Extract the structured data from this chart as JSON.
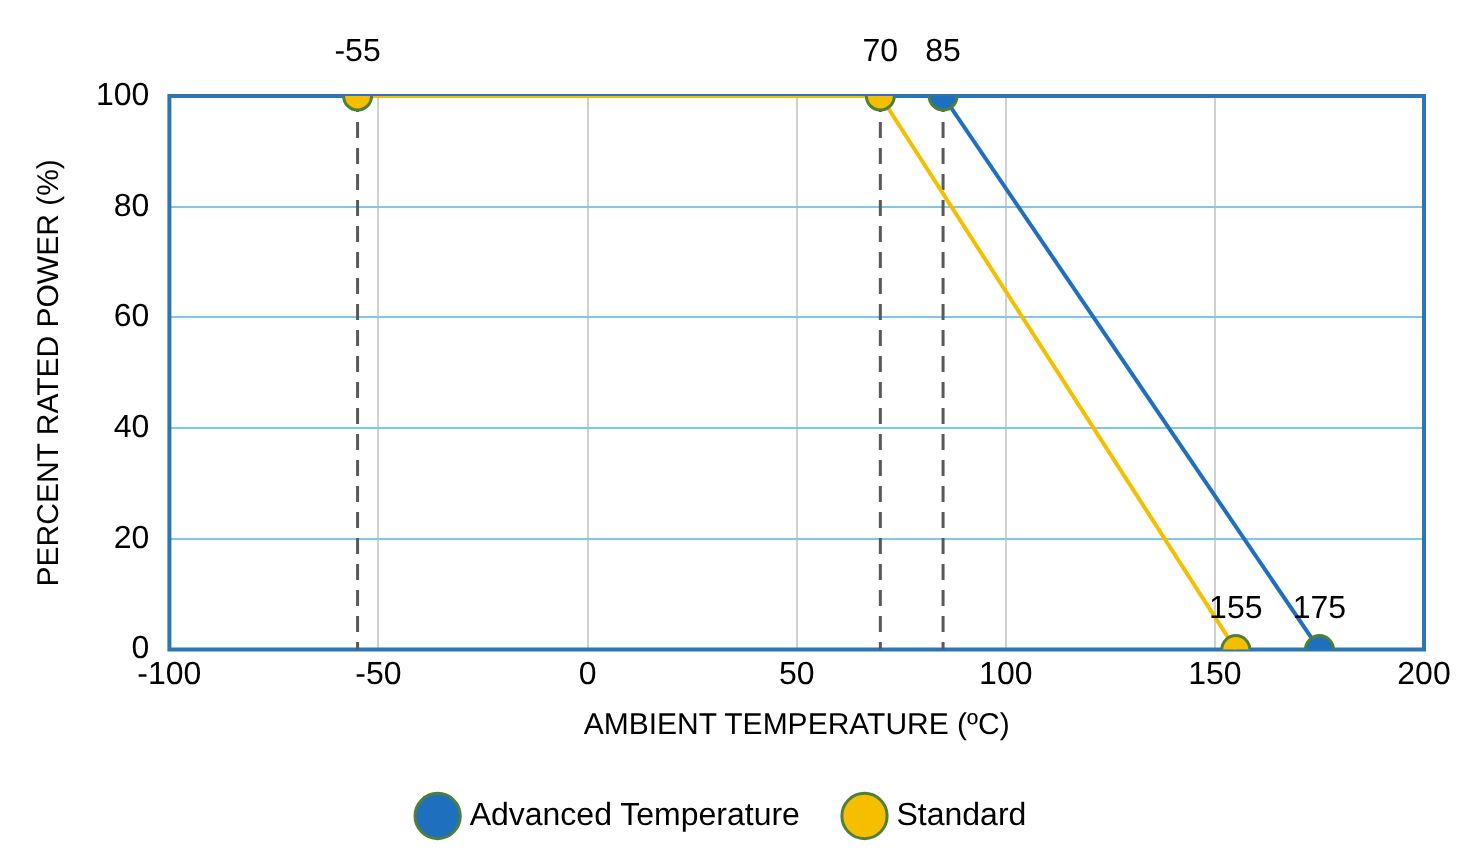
{
  "chart_data": {
    "type": "line",
    "xlabel": "AMBIENT TEMPERATURE (ºC)",
    "ylabel": "PERCENT RATED POWER (%)",
    "xlim": [
      -100,
      200
    ],
    "xticks": [
      -100,
      -50,
      0,
      50,
      100,
      150,
      200
    ],
    "ylim": [
      0,
      100
    ],
    "yticks": [
      0,
      20,
      40,
      60,
      80,
      100
    ],
    "series": [
      {
        "name": "Advanced Temperature",
        "color": "#1f6fbf",
        "x": [
          85,
          175
        ],
        "values": [
          100,
          0
        ]
      },
      {
        "name": "Standard",
        "color": "#f5bf00",
        "x": [
          -55,
          70,
          155
        ],
        "values": [
          100,
          100,
          0
        ]
      }
    ],
    "ref_lines": [
      {
        "axis": "x",
        "value": -55,
        "label": "-55",
        "color": "#595959",
        "line_style": "dashed"
      },
      {
        "axis": "x",
        "value": 70,
        "label": "70",
        "color": "#595959",
        "line_style": "dashed"
      },
      {
        "axis": "x",
        "value": 85,
        "label": "85",
        "color": "#595959",
        "line_style": "dashed"
      }
    ],
    "annotations": [
      {
        "text": "155",
        "x": 155,
        "y": 0
      },
      {
        "text": "175",
        "x": 175,
        "y": 0
      }
    ],
    "grid": true,
    "legend": "bottom",
    "marker": "circle",
    "line_style": "solid"
  }
}
